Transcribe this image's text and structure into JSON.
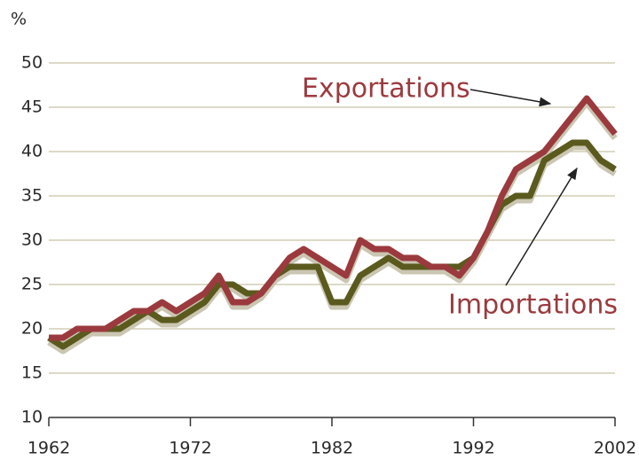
{
  "chart_data": {
    "type": "line",
    "y_label": "%",
    "x": [
      1962,
      1963,
      1964,
      1965,
      1966,
      1967,
      1968,
      1969,
      1970,
      1971,
      1972,
      1973,
      1974,
      1975,
      1976,
      1977,
      1978,
      1979,
      1980,
      1981,
      1982,
      1983,
      1984,
      1985,
      1986,
      1987,
      1988,
      1989,
      1990,
      1991,
      1992,
      1993,
      1994,
      1995,
      1996,
      1997,
      1998,
      1999,
      2000,
      2001,
      2002
    ],
    "series": [
      {
        "name": "Exportations",
        "color": "#9b3a3e",
        "values": [
          19,
          19,
          20,
          20,
          20,
          21,
          22,
          22,
          23,
          22,
          23,
          24,
          26,
          23,
          23,
          24,
          26,
          28,
          29,
          28,
          27,
          26,
          30,
          29,
          29,
          28,
          28,
          27,
          27,
          26,
          28,
          31,
          35,
          38,
          39,
          40,
          42,
          44,
          46,
          44,
          42
        ]
      },
      {
        "name": "Importations",
        "color": "#5b5a1e",
        "values": [
          19,
          18,
          19,
          20,
          20,
          20,
          21,
          22,
          21,
          21,
          22,
          23,
          25,
          25,
          24,
          24,
          26,
          27,
          27,
          27,
          23,
          23,
          26,
          27,
          28,
          27,
          27,
          27,
          27,
          27,
          28,
          31,
          34,
          35,
          35,
          39,
          40,
          41,
          41,
          39,
          38
        ]
      }
    ],
    "xlim": [
      1962,
      2002
    ],
    "xticks": [
      1962,
      1972,
      1982,
      1992,
      2002
    ],
    "ylim": [
      10,
      50
    ],
    "yticks": [
      10,
      15,
      20,
      25,
      30,
      35,
      40,
      45,
      50
    ],
    "grid": true
  }
}
